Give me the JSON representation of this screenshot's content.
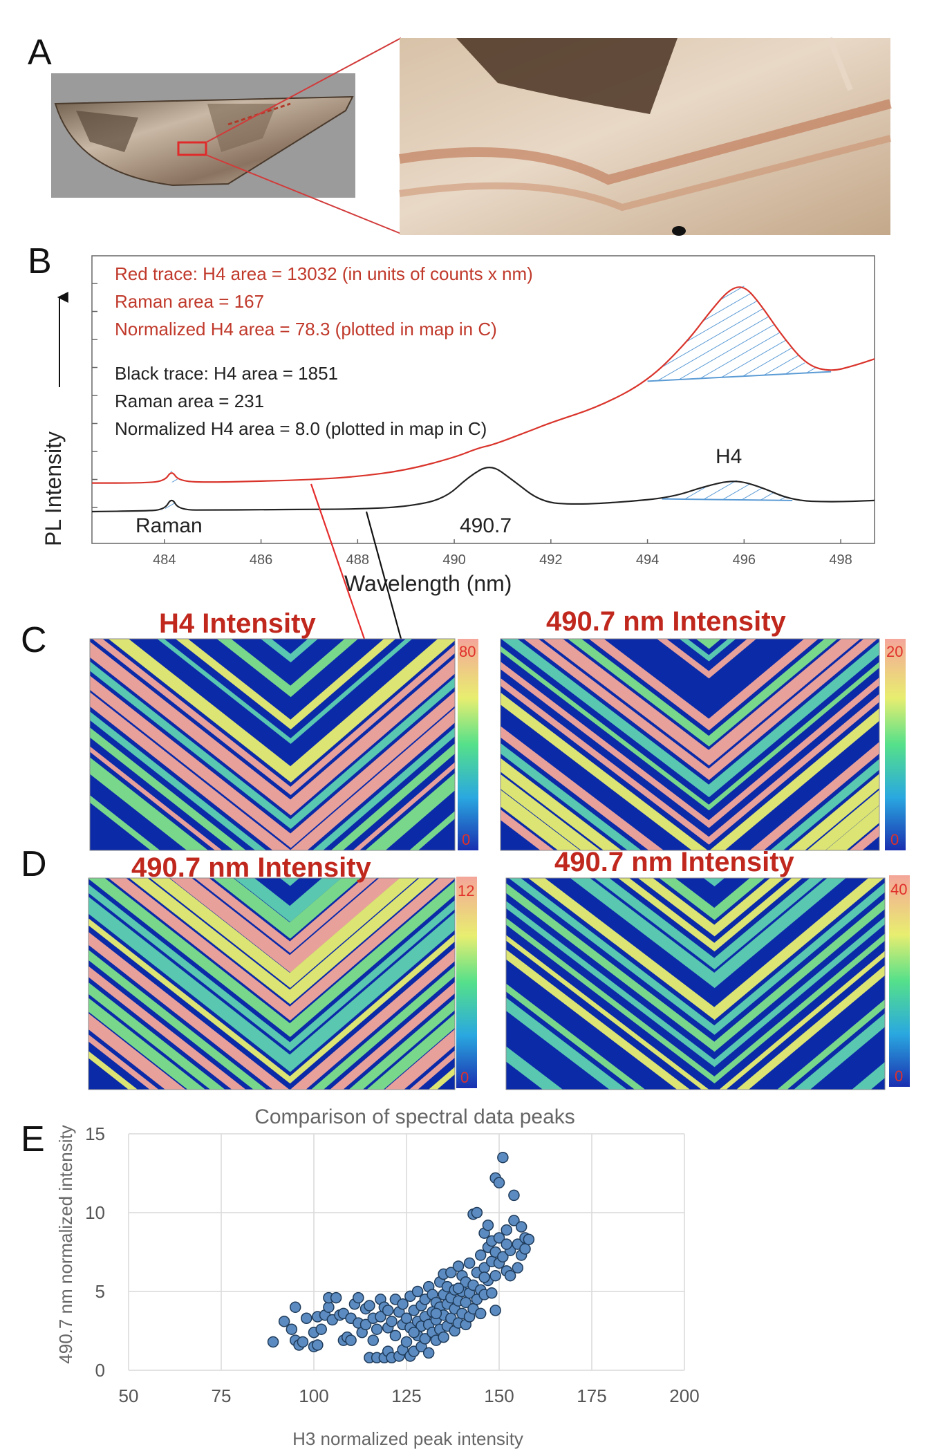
{
  "panels": {
    "a": "A",
    "b": "B",
    "c": "C",
    "d": "D",
    "e": "E"
  },
  "colors": {
    "red_trace": "#d9342b",
    "black_trace": "#222222",
    "hatch": "#5b9bd5",
    "map_low": "#0b2aa8",
    "map_high": "#f4a69a",
    "scatter_fill": "#5b8bc0",
    "scatter_edge": "#1f3b5a"
  },
  "spectrum": {
    "red_notes": [
      "Red trace: H4 area = 13032  (in units of counts x nm)",
      "Raman area = 167",
      "Normalized H4 area = 78.3 (plotted in map in C)"
    ],
    "black_notes": [
      "Black trace: H4 area = 1851",
      "Raman area = 231",
      "Normalized H4 area = 8.0   (plotted in map in C)"
    ],
    "ylabel": "PL Intensity",
    "xlabel": "Wavelength  (nm)",
    "peak_labels": {
      "raman": "Raman",
      "mid": "490.7",
      "h4": "H4"
    }
  },
  "maps": {
    "c_left": {
      "title": "H4 Intensity",
      "max": "80",
      "min": "0"
    },
    "c_right": {
      "title": "490.7 nm Intensity",
      "max": "20",
      "min": "0"
    },
    "d_left": {
      "title": "490.7 nm Intensity",
      "max": "12",
      "min": "0"
    },
    "d_right": {
      "title": "490.7 nm Intensity",
      "max": "40",
      "min": "0"
    }
  },
  "chart_data": [
    {
      "type": "line",
      "xlim": [
        482.5,
        498.7
      ],
      "xticks": [
        484,
        486,
        488,
        490,
        492,
        494,
        496,
        498
      ],
      "xlabel": "Wavelength  (nm)",
      "ylabel": "PL Intensity",
      "series": [
        {
          "color": "red",
          "x": [
            482.5,
            483.5,
            484.0,
            484.15,
            484.3,
            485,
            486,
            487,
            488,
            489,
            490,
            490.5,
            490.8,
            491.5,
            492,
            493,
            494,
            494.8,
            495.3,
            495.7,
            496.0,
            496.3,
            496.8,
            497.3,
            497.8,
            498.3,
            498.7
          ],
          "y": [
            0.9,
            0.9,
            0.95,
            1.3,
            0.95,
            0.92,
            0.96,
            1.0,
            1.1,
            1.3,
            1.7,
            2.0,
            2.1,
            2.5,
            2.8,
            3.3,
            4.1,
            5.3,
            6.3,
            7.0,
            7.1,
            6.6,
            5.5,
            4.6,
            4.4,
            4.6,
            4.8
          ]
        },
        {
          "color": "black",
          "x": [
            482.5,
            483.5,
            484.0,
            484.15,
            484.3,
            485,
            486,
            487,
            488,
            489,
            489.8,
            490.3,
            490.75,
            491.2,
            491.8,
            492.5,
            493.5,
            494.5,
            495.2,
            495.8,
            496.3,
            497,
            497.8,
            498.7
          ],
          "y": [
            0.0,
            0.02,
            0.05,
            0.45,
            0.05,
            0.05,
            0.06,
            0.07,
            0.08,
            0.15,
            0.4,
            1.1,
            1.5,
            1.0,
            0.3,
            0.22,
            0.3,
            0.45,
            0.8,
            1.0,
            0.8,
            0.35,
            0.3,
            0.35
          ]
        }
      ]
    },
    {
      "type": "scatter",
      "title": "Comparison of spectral data peaks",
      "xlabel": "H3 normalized peak intensity",
      "ylabel": "490.7 nm normalized intensity",
      "xlim": [
        50,
        200
      ],
      "ylim": [
        0,
        15
      ],
      "xticks": [
        50,
        75,
        100,
        125,
        150,
        175,
        200
      ],
      "yticks": [
        0,
        5,
        10,
        15
      ],
      "grid": true,
      "points": [
        [
          89,
          1.8
        ],
        [
          92,
          3.1
        ],
        [
          94,
          2.6
        ],
        [
          95,
          1.9
        ],
        [
          95,
          4.0
        ],
        [
          96,
          1.6
        ],
        [
          97,
          1.8
        ],
        [
          98,
          3.3
        ],
        [
          100,
          1.5
        ],
        [
          100,
          2.4
        ],
        [
          101,
          1.6
        ],
        [
          101,
          3.4
        ],
        [
          102,
          2.6
        ],
        [
          103,
          3.5
        ],
        [
          104,
          4.0
        ],
        [
          104,
          4.6
        ],
        [
          105,
          3.2
        ],
        [
          106,
          4.6
        ],
        [
          107,
          3.5
        ],
        [
          108,
          1.9
        ],
        [
          108,
          3.6
        ],
        [
          109,
          2.1
        ],
        [
          110,
          1.9
        ],
        [
          110,
          3.3
        ],
        [
          111,
          4.2
        ],
        [
          112,
          3.0
        ],
        [
          112,
          4.6
        ],
        [
          113,
          2.4
        ],
        [
          114,
          3.9
        ],
        [
          114,
          2.9
        ],
        [
          115,
          0.8
        ],
        [
          115,
          4.1
        ],
        [
          116,
          3.3
        ],
        [
          116,
          1.9
        ],
        [
          117,
          0.8
        ],
        [
          117,
          2.6
        ],
        [
          118,
          4.5
        ],
        [
          118,
          3.4
        ],
        [
          119,
          0.8
        ],
        [
          119,
          4.0
        ],
        [
          120,
          1.2
        ],
        [
          120,
          2.7
        ],
        [
          120,
          3.8
        ],
        [
          121,
          0.8
        ],
        [
          121,
          3.1
        ],
        [
          122,
          4.5
        ],
        [
          122,
          2.2
        ],
        [
          123,
          0.9
        ],
        [
          123,
          3.7
        ],
        [
          124,
          1.3
        ],
        [
          124,
          2.9
        ],
        [
          124,
          4.2
        ],
        [
          125,
          1.8
        ],
        [
          125,
          3.3
        ],
        [
          126,
          0.9
        ],
        [
          126,
          2.7
        ],
        [
          126,
          4.7
        ],
        [
          127,
          1.2
        ],
        [
          127,
          3.8
        ],
        [
          128,
          2.2
        ],
        [
          128,
          3.1
        ],
        [
          128,
          5.0
        ],
        [
          129,
          1.5
        ],
        [
          129,
          2.8
        ],
        [
          129,
          4.1
        ],
        [
          130,
          2.0
        ],
        [
          130,
          3.4
        ],
        [
          130,
          4.5
        ],
        [
          131,
          1.1
        ],
        [
          131,
          2.9
        ],
        [
          131,
          5.3
        ],
        [
          132,
          2.4
        ],
        [
          132,
          3.7
        ],
        [
          132,
          4.8
        ],
        [
          133,
          1.9
        ],
        [
          133,
          3.2
        ],
        [
          133,
          4.3
        ],
        [
          134,
          2.6
        ],
        [
          134,
          4.0
        ],
        [
          134,
          5.6
        ],
        [
          135,
          2.1
        ],
        [
          135,
          3.5
        ],
        [
          135,
          4.8
        ],
        [
          135,
          6.1
        ],
        [
          136,
          2.8
        ],
        [
          136,
          4.2
        ],
        [
          136,
          5.3
        ],
        [
          137,
          3.3
        ],
        [
          137,
          4.6
        ],
        [
          137,
          6.2
        ],
        [
          138,
          2.5
        ],
        [
          138,
          3.9
        ],
        [
          138,
          5.1
        ],
        [
          139,
          3.0
        ],
        [
          139,
          4.4
        ],
        [
          139,
          6.6
        ],
        [
          140,
          3.6
        ],
        [
          140,
          5.0
        ],
        [
          140,
          6.0
        ],
        [
          141,
          2.9
        ],
        [
          141,
          4.3
        ],
        [
          141,
          5.6
        ],
        [
          142,
          3.4
        ],
        [
          142,
          4.9
        ],
        [
          142,
          6.8
        ],
        [
          143,
          3.9
        ],
        [
          143,
          5.4
        ],
        [
          143,
          9.9
        ],
        [
          144,
          4.5
        ],
        [
          144,
          6.2
        ],
        [
          144,
          10.0
        ],
        [
          145,
          3.6
        ],
        [
          145,
          5.1
        ],
        [
          145,
          7.3
        ],
        [
          146,
          4.8
        ],
        [
          146,
          6.5
        ],
        [
          146,
          8.7
        ],
        [
          147,
          5.7
        ],
        [
          147,
          7.8
        ],
        [
          147,
          9.2
        ],
        [
          148,
          4.9
        ],
        [
          148,
          6.9
        ],
        [
          148,
          8.2
        ],
        [
          149,
          3.8
        ],
        [
          149,
          6.0
        ],
        [
          149,
          7.5
        ],
        [
          149,
          12.2
        ],
        [
          150,
          6.8
        ],
        [
          150,
          8.4
        ],
        [
          150,
          11.9
        ],
        [
          151,
          7.2
        ],
        [
          151,
          13.5
        ],
        [
          152,
          6.3
        ],
        [
          152,
          8.9
        ],
        [
          153,
          7.6
        ],
        [
          153,
          6.0
        ],
        [
          154,
          9.5
        ],
        [
          154,
          11.1
        ],
        [
          155,
          6.5
        ],
        [
          155,
          8.0
        ],
        [
          156,
          7.3
        ],
        [
          156,
          9.1
        ],
        [
          157,
          7.7
        ],
        [
          157,
          8.4
        ],
        [
          158,
          8.3
        ],
        [
          152,
          8.0
        ],
        [
          146,
          5.9
        ],
        [
          139,
          5.2
        ],
        [
          133,
          3.6
        ],
        [
          127,
          2.4
        ]
      ]
    }
  ]
}
